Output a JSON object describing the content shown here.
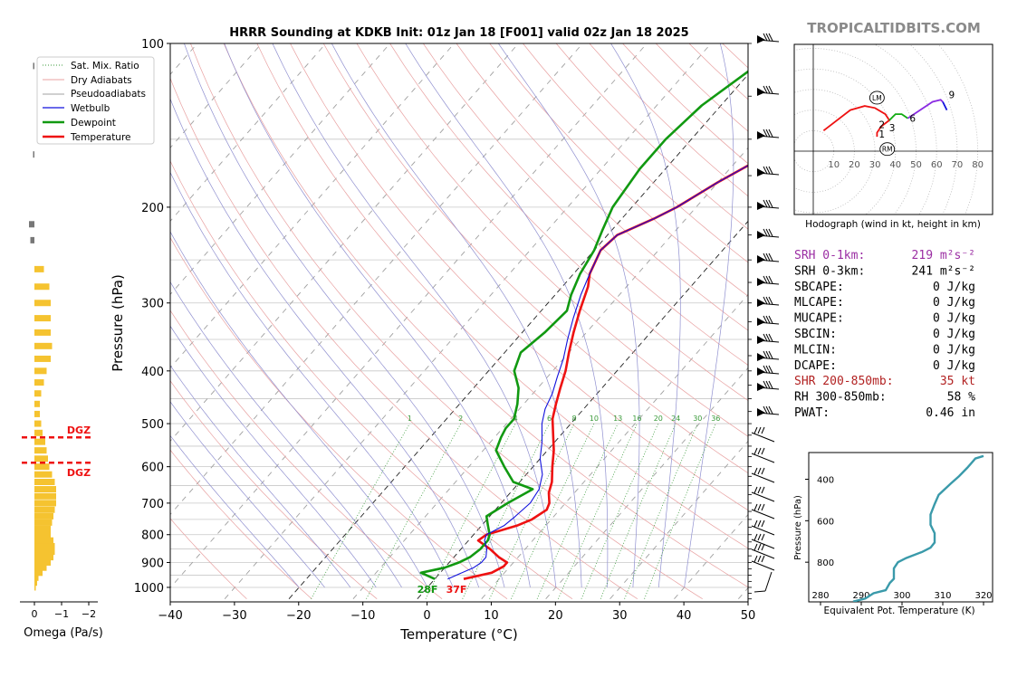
{
  "main": {
    "title": "HRRR Sounding at KDKB Init: 01z Jan 18 [F001] valid 02z Jan 18 2025",
    "xlabel": "Temperature (°C)",
    "ylabel": "Pressure (hPa)",
    "x_ticks": [
      "−40",
      "−30",
      "−20",
      "−10",
      "0",
      "10",
      "20",
      "30",
      "40",
      "50"
    ],
    "y_ticks": [
      "100",
      "200",
      "300",
      "400",
      "500",
      "600",
      "700",
      "800",
      "900",
      "1000"
    ],
    "surface_dewpoint_label": "28F",
    "surface_temp_label": "37F",
    "mixing_ratio_labels": [
      "1",
      "2",
      "4",
      "6",
      "8",
      "10",
      "13",
      "16",
      "20",
      "24",
      "30",
      "36"
    ]
  },
  "legend": {
    "items": [
      "Sat. Mix. Ratio",
      "Dry Adiabats",
      "Pseudoadiabats",
      "Wetbulb",
      "Dewpoint",
      "Temperature"
    ]
  },
  "omega": {
    "xlabel": "Omega (Pa/s)",
    "x_ticks": [
      "0",
      "−1",
      "−2"
    ],
    "dgz_label_top": "DGZ",
    "dgz_label_bottom": "DGZ"
  },
  "brand": {
    "text": "TROPICALTIDBITS.COM"
  },
  "hodograph": {
    "caption": "Hodograph (wind in kt, height in km)",
    "ring_labels": [
      "10",
      "20",
      "30",
      "40",
      "50",
      "60",
      "70",
      "80"
    ],
    "height_labels": [
      "1",
      "2",
      "3",
      "6",
      "9"
    ],
    "lm_label": "LM",
    "rm_label": "RM"
  },
  "indices": [
    {
      "label": "SRH 0-1km:",
      "value": "219 m²s⁻²",
      "color": "#9b2ea3"
    },
    {
      "label": "SRH 0-3km:",
      "value": "241 m²s⁻²",
      "color": "#000000"
    },
    {
      "label": "SBCAPE:",
      "value": "0 J/kg",
      "color": "#000000"
    },
    {
      "label": "MLCAPE:",
      "value": "0 J/kg",
      "color": "#000000"
    },
    {
      "label": "MUCAPE:",
      "value": "0 J/kg",
      "color": "#000000"
    },
    {
      "label": "SBCIN:",
      "value": "0 J/kg",
      "color": "#000000"
    },
    {
      "label": "MLCIN:",
      "value": "0 J/kg",
      "color": "#000000"
    },
    {
      "label": "DCAPE:",
      "value": "0 J/kg",
      "color": "#000000"
    },
    {
      "label": "SHR 200-850mb:",
      "value": "35 kt",
      "color": "#b22222"
    },
    {
      "label": "RH 300-850mb:",
      "value": "58 %",
      "color": "#000000"
    },
    {
      "label": "PWAT:",
      "value": "0.46 in",
      "color": "#000000"
    }
  ],
  "theta_e": {
    "xlabel": "Equivalent Pot. Temperature (K)",
    "ylabel": "Pressure (hPa)",
    "x_ticks": [
      "280",
      "290",
      "300",
      "310",
      "320"
    ],
    "y_ticks": [
      "400",
      "600",
      "800"
    ]
  },
  "chart_data": [
    {
      "type": "line",
      "name": "skew-t",
      "title": "HRRR Sounding at KDKB Init: 01z Jan 18 [F001] valid 02z Jan 18 2025",
      "xlabel": "Temperature (°C)",
      "ylabel": "Pressure (hPa)",
      "xlim": [
        -40,
        50
      ],
      "ylim": [
        1050,
        100
      ],
      "y_scale": "log",
      "series": [
        {
          "name": "Temperature",
          "color": "#ee1111",
          "points": [
            [
              965,
              4.5
            ],
            [
              940,
              8
            ],
            [
              915,
              9
            ],
            [
              900,
              9
            ],
            [
              880,
              7
            ],
            [
              850,
              4.5
            ],
            [
              820,
              1.5
            ],
            [
              800,
              2
            ],
            [
              770,
              5.5
            ],
            [
              750,
              7
            ],
            [
              720,
              8
            ],
            [
              700,
              7.5
            ],
            [
              670,
              6
            ],
            [
              640,
              5
            ],
            [
              600,
              3
            ],
            [
              560,
              1
            ],
            [
              520,
              -1.5
            ],
            [
              490,
              -3.5
            ],
            [
              460,
              -5
            ],
            [
              430,
              -6.5
            ],
            [
              400,
              -8
            ],
            [
              370,
              -10
            ],
            [
              340,
              -12
            ],
            [
              310,
              -14
            ],
            [
              280,
              -16
            ],
            [
              265,
              -17.5
            ],
            [
              240,
              -19
            ],
            [
              225,
              -18.5
            ],
            [
              210,
              -15
            ],
            [
              200,
              -13
            ],
            [
              180,
              -10
            ],
            [
              160,
              -6
            ],
            [
              145,
              -3
            ],
            [
              135,
              -1.5
            ],
            [
              125,
              0
            ],
            [
              110,
              5
            ],
            [
              105,
              7
            ],
            [
              100,
              10
            ]
          ]
        },
        {
          "name": "Dewpoint",
          "color": "#119911",
          "points": [
            [
              965,
              0
            ],
            [
              940,
              -3
            ],
            [
              920,
              0
            ],
            [
              900,
              1.5
            ],
            [
              880,
              2.5
            ],
            [
              850,
              3
            ],
            [
              820,
              3
            ],
            [
              800,
              2.5
            ],
            [
              770,
              1
            ],
            [
              740,
              -0.5
            ],
            [
              700,
              1
            ],
            [
              660,
              3
            ],
            [
              640,
              -1
            ],
            [
              600,
              -4.5
            ],
            [
              560,
              -8
            ],
            [
              530,
              -9
            ],
            [
              510,
              -9.5
            ],
            [
              490,
              -9.5
            ],
            [
              460,
              -11
            ],
            [
              430,
              -13
            ],
            [
              400,
              -16
            ],
            [
              370,
              -17.5
            ],
            [
              340,
              -16.5
            ],
            [
              310,
              -16
            ],
            [
              290,
              -17.5
            ],
            [
              265,
              -19
            ],
            [
              240,
              -20
            ],
            [
              220,
              -21.5
            ],
            [
              200,
              -23
            ],
            [
              170,
              -24
            ],
            [
              150,
              -24
            ],
            [
              130,
              -23
            ],
            [
              110,
              -20
            ],
            [
              100,
              -17
            ]
          ]
        },
        {
          "name": "Wetbulb",
          "color": "#1111dd",
          "points": [
            [
              965,
              2
            ],
            [
              920,
              4.5
            ],
            [
              900,
              5
            ],
            [
              880,
              5
            ],
            [
              850,
              4
            ],
            [
              820,
              2.5
            ],
            [
              800,
              2
            ],
            [
              770,
              3.5
            ],
            [
              740,
              4
            ],
            [
              700,
              4.5
            ],
            [
              660,
              4
            ],
            [
              620,
              2.5
            ],
            [
              580,
              0
            ],
            [
              540,
              -2
            ],
            [
              500,
              -4.5
            ],
            [
              470,
              -6
            ],
            [
              440,
              -7
            ],
            [
              410,
              -8.5
            ],
            [
              380,
              -10
            ],
            [
              350,
              -12
            ],
            [
              320,
              -14
            ],
            [
              290,
              -16
            ],
            [
              265,
              -17.5
            ],
            [
              240,
              -19
            ],
            [
              225,
              -18.5
            ],
            [
              210,
              -15
            ],
            [
              200,
              -13
            ],
            [
              180,
              -10
            ],
            [
              160,
              -6
            ],
            [
              145,
              -3
            ],
            [
              135,
              -1.5
            ],
            [
              125,
              0
            ],
            [
              110,
              5
            ],
            [
              105,
              7
            ],
            [
              100,
              10
            ]
          ]
        }
      ]
    },
    {
      "type": "bar",
      "name": "omega",
      "xlabel": "Omega (Pa/s)",
      "xlim": [
        0.3,
        -2.8
      ],
      "dgz_pressures_hpa": [
        530,
        590
      ],
      "bars": [
        [
          1000,
          -0.05
        ],
        [
          980,
          -0.1
        ],
        [
          960,
          -0.15
        ],
        [
          940,
          -0.3
        ],
        [
          920,
          -0.45
        ],
        [
          900,
          -0.6
        ],
        [
          880,
          -0.7
        ],
        [
          860,
          -0.75
        ],
        [
          840,
          -0.75
        ],
        [
          820,
          -0.7
        ],
        [
          800,
          -0.6
        ],
        [
          780,
          -0.6
        ],
        [
          760,
          -0.65
        ],
        [
          740,
          -0.7
        ],
        [
          720,
          -0.75
        ],
        [
          700,
          -0.8
        ],
        [
          680,
          -0.8
        ],
        [
          660,
          -0.8
        ],
        [
          640,
          -0.75
        ],
        [
          620,
          -0.65
        ],
        [
          600,
          -0.55
        ],
        [
          580,
          -0.5
        ],
        [
          560,
          -0.45
        ],
        [
          540,
          -0.4
        ],
        [
          520,
          -0.3
        ],
        [
          500,
          -0.25
        ],
        [
          480,
          -0.2
        ],
        [
          460,
          -0.2
        ],
        [
          440,
          -0.25
        ],
        [
          420,
          -0.35
        ],
        [
          400,
          -0.45
        ],
        [
          380,
          -0.6
        ],
        [
          360,
          -0.65
        ],
        [
          340,
          -0.6
        ],
        [
          320,
          -0.6
        ],
        [
          300,
          -0.6
        ],
        [
          280,
          -0.55
        ],
        [
          260,
          -0.35
        ],
        [
          230,
          0.15
        ],
        [
          215,
          0.2
        ],
        [
          160,
          0.05
        ],
        [
          110,
          0.05
        ]
      ]
    },
    {
      "type": "line",
      "name": "hodograph",
      "xlabel": "u (kt)",
      "ylabel": "v (kt)",
      "rings_kt": [
        10,
        20,
        30,
        40,
        50,
        60,
        70,
        80
      ],
      "segments": [
        {
          "color": "#ee1111",
          "points": [
            [
              5,
              10
            ],
            [
              18,
              20
            ],
            [
              25,
              22
            ],
            [
              30,
              21
            ],
            [
              35,
              18
            ],
            [
              37,
              15
            ],
            [
              33,
              12
            ],
            [
              31,
              9
            ],
            [
              31,
              7
            ]
          ]
        },
        {
          "color": "#11aa11",
          "points": [
            [
              37,
              15
            ],
            [
              40,
              18
            ],
            [
              43,
              18
            ],
            [
              46,
              16
            ]
          ]
        },
        {
          "color": "#8a2be2",
          "points": [
            [
              46,
              16
            ],
            [
              52,
              20
            ],
            [
              58,
              24
            ],
            [
              62,
              25
            ],
            [
              63,
              24
            ]
          ]
        },
        {
          "color": "#1111dd",
          "points": [
            [
              63,
              24
            ],
            [
              65,
              20
            ]
          ]
        }
      ],
      "label_points": {
        "1": [
          31,
          8.3
        ],
        "2": [
          31,
          13
        ],
        "3": [
          36,
          11.5
        ],
        "6": [
          46,
          16
        ],
        "9": [
          65,
          27.5
        ]
      },
      "storm_motion": {
        "LM": [
          31,
          26
        ],
        "RM": [
          36,
          1
        ]
      }
    },
    {
      "type": "line",
      "name": "theta-e",
      "xlabel": "Equivalent Pot. Temperature (K)",
      "ylabel": "Pressure (hPa)",
      "xlim": [
        278,
        322
      ],
      "ylim": [
        1000,
        280
      ],
      "series": [
        {
          "name": "Theta-e",
          "color": "#3a9aaa",
          "points": [
            [
              288,
              990
            ],
            [
              291,
              975
            ],
            [
              293,
              950
            ],
            [
              296,
              935
            ],
            [
              297,
              900
            ],
            [
              298,
              880
            ],
            [
              298,
              830
            ],
            [
              299,
              800
            ],
            [
              301,
              780
            ],
            [
              305,
              750
            ],
            [
              307,
              730
            ],
            [
              308,
              705
            ],
            [
              308,
              660
            ],
            [
              307,
              620
            ],
            [
              307,
              570
            ],
            [
              308,
              520
            ],
            [
              309,
              475
            ],
            [
              312,
              420
            ],
            [
              314,
              385
            ],
            [
              316,
              345
            ],
            [
              318,
              300
            ],
            [
              320,
              288
            ]
          ]
        }
      ]
    }
  ]
}
